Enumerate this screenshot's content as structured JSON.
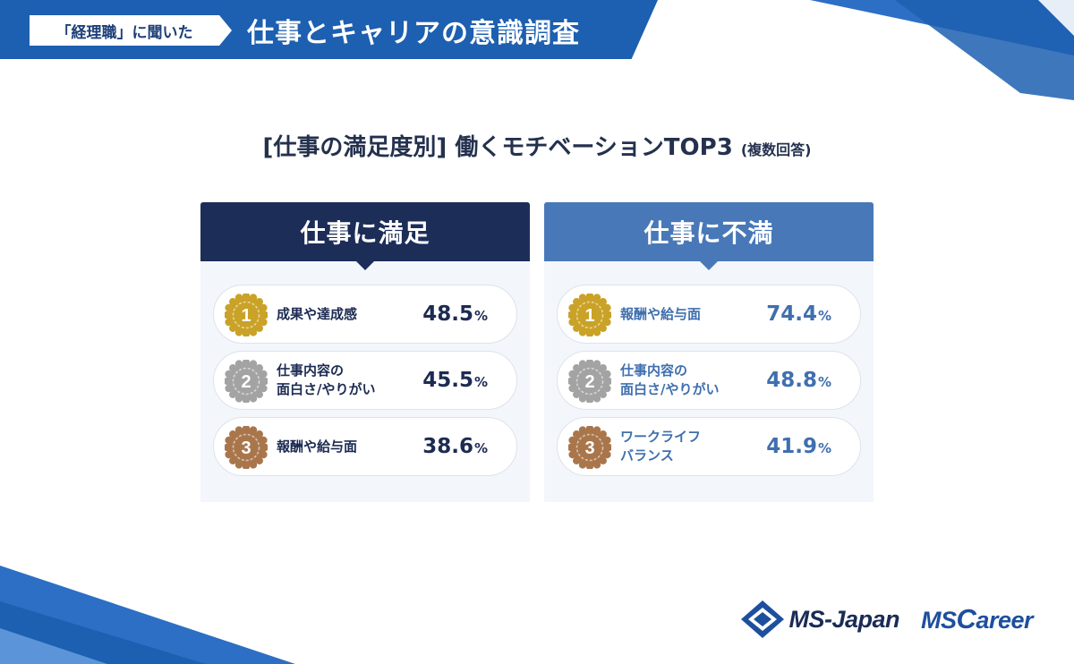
{
  "header": {
    "tag": "「経理職」に聞いた",
    "title": "仕事とキャリアの意識調査"
  },
  "chart_data": {
    "type": "table",
    "title": "[仕事の満足度別] 働くモチベーションTOP3",
    "note": "(複数回答)",
    "unit": "%",
    "groups": [
      {
        "name": "仕事に満足",
        "color": "#1c2d58",
        "items": [
          {
            "rank": "1",
            "lines": [
              "成果や達成感"
            ],
            "value": 48.5,
            "value_text": "48.5"
          },
          {
            "rank": "2",
            "lines": [
              "仕事内容の",
              "面白さ/やりがい"
            ],
            "value": 45.5,
            "value_text": "45.5"
          },
          {
            "rank": "3",
            "lines": [
              "報酬や給与面"
            ],
            "value": 38.6,
            "value_text": "38.6"
          }
        ]
      },
      {
        "name": "仕事に不満",
        "color": "#4878b8",
        "items": [
          {
            "rank": "1",
            "lines": [
              "報酬や給与面"
            ],
            "value": 74.4,
            "value_text": "74.4"
          },
          {
            "rank": "2",
            "lines": [
              "仕事内容の",
              "面白さ/やりがい"
            ],
            "value": 48.8,
            "value_text": "48.8"
          },
          {
            "rank": "3",
            "lines": [
              "ワークライフ",
              "バランス"
            ],
            "value": 41.9,
            "value_text": "41.9"
          }
        ]
      }
    ]
  },
  "colors": {
    "banner": "#1d5fb0",
    "satisfied_head": "#1c2d58",
    "dissatisfied_head": "#4878b8",
    "gold": "#c9a227",
    "silver": "#a3a3a3",
    "bronze": "#a9764c"
  },
  "logos": {
    "ms_japan": "MS-Japan",
    "ms_career_ms": "MS",
    "ms_career_c": "C",
    "ms_career_rest": "areer"
  }
}
